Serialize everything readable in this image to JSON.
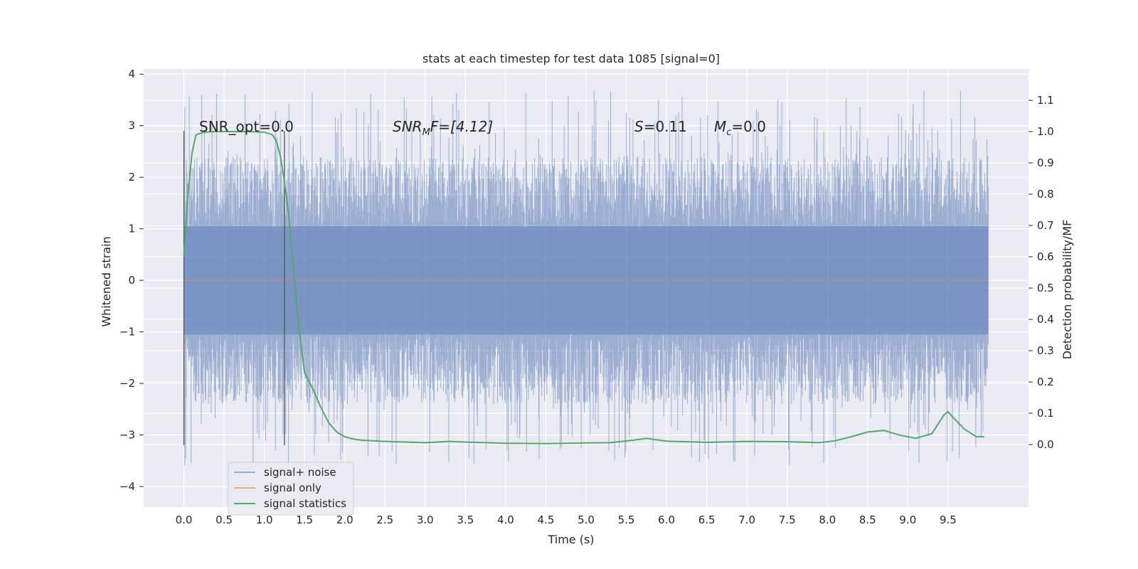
{
  "chart_data": {
    "type": "line",
    "title": "stats at each timestep for test data 1085 [signal=0]",
    "xlabel": "Time (s)",
    "ylabel": "Whitened strain",
    "y2label": "Detection probability/MF",
    "xlim": [
      -0.5,
      10.5
    ],
    "ylim": [
      -4.4,
      4.1
    ],
    "y2lim": [
      -0.2,
      1.2
    ],
    "xticks": [
      "0.0",
      "0.5",
      "1.0",
      "1.5",
      "2.0",
      "2.5",
      "3.0",
      "3.5",
      "4.0",
      "4.5",
      "5.0",
      "5.5",
      "6.0",
      "6.5",
      "7.0",
      "7.5",
      "8.0",
      "8.5",
      "9.0",
      "9.5"
    ],
    "yticks": [
      "4",
      "3",
      "2",
      "1",
      "0",
      "−1",
      "−2",
      "−3",
      "−4"
    ],
    "y2ticks": [
      "1.1",
      "1.0",
      "0.9",
      "0.8",
      "0.7",
      "0.6",
      "0.5",
      "0.4",
      "0.3",
      "0.2",
      "0.1",
      "0.0"
    ],
    "grid": true,
    "legend_position": "lower-left",
    "annotations": {
      "snr_opt": "SNR_opt=0.0",
      "snr_mf_base": "SNR",
      "snr_mf_sub": "M",
      "snr_mf_rest": "F=[4.12]",
      "s_sym": "S",
      "s_val": "=0.11",
      "mc_base": "M",
      "mc_sub": "c",
      "mc_val": "=0.0"
    },
    "vlines_x": [
      0.0,
      1.25
    ],
    "series": [
      {
        "name": "signal+ noise",
        "color": "#4c72b0",
        "noise_envelope": {
          "x_start": 0.0,
          "x_end": 10.0,
          "typical_peak": 2.4,
          "max": 3.7,
          "min": -3.6
        }
      },
      {
        "name": "signal only",
        "color": "#dd8452",
        "x": [
          0.0,
          10.0
        ],
        "y": [
          0.0,
          0.0
        ]
      },
      {
        "name": "signal statistics",
        "color": "#55a868",
        "axis": "right",
        "x": [
          0.0,
          0.05,
          0.1,
          0.15,
          0.25,
          0.4,
          0.6,
          0.8,
          1.0,
          1.1,
          1.15,
          1.2,
          1.25,
          1.3,
          1.35,
          1.4,
          1.45,
          1.5,
          1.6,
          1.7,
          1.8,
          1.9,
          2.0,
          2.1,
          2.2,
          2.5,
          3.0,
          3.3,
          3.5,
          4.0,
          4.5,
          5.0,
          5.3,
          5.6,
          5.75,
          6.0,
          6.5,
          7.0,
          7.5,
          7.9,
          8.1,
          8.3,
          8.5,
          8.7,
          8.9,
          9.1,
          9.3,
          9.45,
          9.5,
          9.55,
          9.7,
          9.85,
          9.95
        ],
        "y": [
          0.6,
          0.8,
          0.93,
          0.99,
          0.998,
          1.0,
          1.0,
          1.0,
          0.998,
          0.99,
          0.97,
          0.92,
          0.84,
          0.74,
          0.6,
          0.45,
          0.33,
          0.23,
          0.18,
          0.12,
          0.07,
          0.04,
          0.025,
          0.018,
          0.014,
          0.01,
          0.006,
          0.01,
          0.008,
          0.004,
          0.003,
          0.005,
          0.006,
          0.014,
          0.02,
          0.011,
          0.007,
          0.01,
          0.009,
          0.006,
          0.012,
          0.025,
          0.04,
          0.045,
          0.03,
          0.02,
          0.035,
          0.095,
          0.105,
          0.09,
          0.05,
          0.025,
          0.025
        ]
      }
    ]
  }
}
